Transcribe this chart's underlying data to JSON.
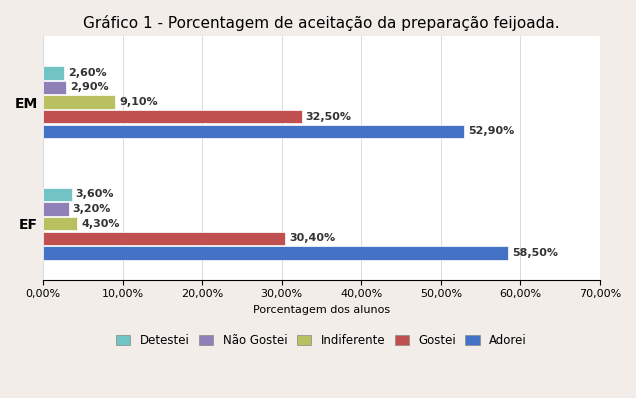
{
  "title": "Gráfico 1 - Porcentagem de aceitação da preparação feijoada.",
  "xlabel": "Porcentagem dos alunos",
  "groups": [
    "EM",
    "EF"
  ],
  "categories": [
    "Detestei",
    "Não Gostei",
    "Indiferente",
    "Gostei",
    "Adorei"
  ],
  "colors": [
    "#72c4c4",
    "#9080b8",
    "#b8c060",
    "#c05050",
    "#4472c4"
  ],
  "values": {
    "EM": [
      2.6,
      2.9,
      9.1,
      32.5,
      52.9
    ],
    "EF": [
      3.6,
      3.2,
      4.3,
      30.4,
      58.5
    ]
  },
  "xlim": [
    0,
    70
  ],
  "xticks": [
    0,
    10,
    20,
    30,
    40,
    50,
    60,
    70
  ],
  "xtick_labels": [
    "0,00%",
    "10,00%",
    "20,00%",
    "30,00%",
    "40,00%",
    "50,00%",
    "60,00%",
    "70,00%"
  ],
  "background_color": "#f2ede8",
  "plot_bg_color": "#ffffff",
  "title_fontsize": 11,
  "label_fontsize": 8,
  "tick_fontsize": 8,
  "legend_fontsize": 8.5,
  "ylabel_fontsize": 10
}
